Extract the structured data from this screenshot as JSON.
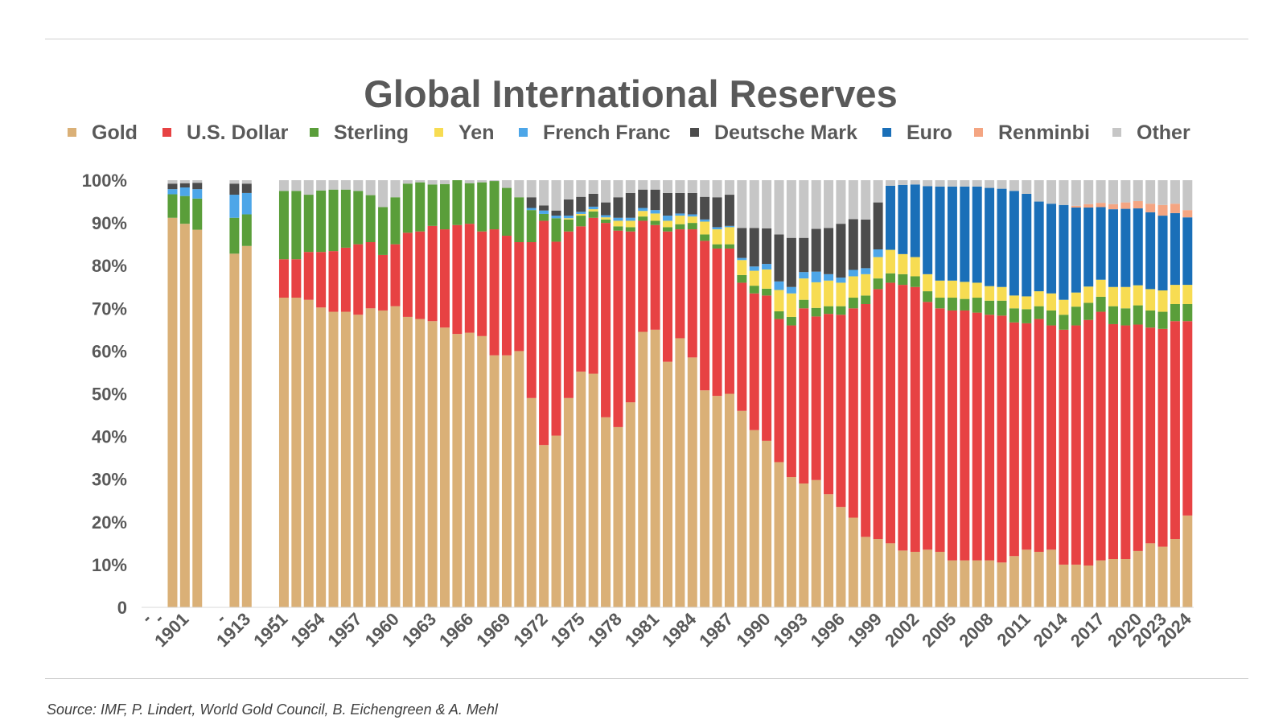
{
  "source": "Source: IMF, P. Lindert, World Gold Council, B. Eichengreen & A. Mehl",
  "chart_data": {
    "type": "bar",
    "stacked": true,
    "title": "Global International Reserves",
    "legend_position": "top",
    "ylim": [
      0,
      100
    ],
    "y_ticks": [
      "0",
      "10%",
      "20%",
      "30%",
      "40%",
      "50%",
      "60%",
      "70%",
      "80%",
      "90%",
      "100%"
    ],
    "grid": false,
    "series": [
      {
        "name": "Gold",
        "color": "#DAB077"
      },
      {
        "name": "U.S. Dollar",
        "color": "#E74243"
      },
      {
        "name": "Sterling",
        "color": "#5A9E3A"
      },
      {
        "name": "Yen",
        "color": "#F7DC52"
      },
      {
        "name": "French Franc",
        "color": "#4DA6E8"
      },
      {
        "name": "Deutsche Mark",
        "color": "#4C4C4C"
      },
      {
        "name": "Euro",
        "color": "#1A6FB8"
      },
      {
        "name": "Renminbi",
        "color": "#F4A582"
      },
      {
        "name": "Other",
        "color": "#C6C6C6"
      }
    ],
    "categories": [
      "",
      "",
      "1900",
      "1901",
      "1902",
      "",
      "",
      "1912",
      "1913",
      "",
      "",
      "1951",
      "1952",
      "1953",
      "1954",
      "1955",
      "1956",
      "1957",
      "1958",
      "1959",
      "1960",
      "1961",
      "1962",
      "1963",
      "1964",
      "1965",
      "1966",
      "1967",
      "1968",
      "1969",
      "1970",
      "1971",
      "1972",
      "1973",
      "1974",
      "1975",
      "1976",
      "1977",
      "1978",
      "1979",
      "1980",
      "1981",
      "1982",
      "1983",
      "1984",
      "1985",
      "1986",
      "1987",
      "1988",
      "1989",
      "1990",
      "1991",
      "1992",
      "1993",
      "1994",
      "1995",
      "1996",
      "1997",
      "1998",
      "1999",
      "2000",
      "2001",
      "2002",
      "2003",
      "2004",
      "2005",
      "2006",
      "2007",
      "2008",
      "2009",
      "2010",
      "2011",
      "2012",
      "2013",
      "2014",
      "2015",
      "2016",
      "2017",
      "2018",
      "2019",
      "2020",
      "2021",
      "2022",
      "2023",
      "2024"
    ],
    "x_tick_labels": [
      "-",
      "-",
      "1901",
      "-",
      "1913",
      "-",
      "1951",
      "1954",
      "1957",
      "1960",
      "1963",
      "1966",
      "1969",
      "1972",
      "1975",
      "1978",
      "1981",
      "1984",
      "1987",
      "1990",
      "1993",
      "1996",
      "1999",
      "2002",
      "2005",
      "2008",
      "2011",
      "2014",
      "2017",
      "2020",
      "2023",
      "2024"
    ],
    "values": {
      "1900": [
        91.2,
        0,
        5.5,
        0,
        1.2,
        1.3,
        0,
        0,
        0.8
      ],
      "1901": [
        89.8,
        0,
        6.5,
        0,
        2.0,
        1.0,
        0,
        0,
        0.7
      ],
      "1902": [
        88.4,
        0,
        7.3,
        0,
        2.2,
        1.5,
        0,
        0,
        0.6
      ],
      "1912": [
        82.8,
        0,
        8.4,
        0,
        5.4,
        2.6,
        0,
        0,
        0.8
      ],
      "1913": [
        84.6,
        0,
        7.4,
        0,
        5.0,
        2.2,
        0,
        0,
        0.8
      ],
      "1951": [
        72.5,
        9.0,
        16.0,
        0,
        0,
        0,
        0,
        0,
        2.5
      ],
      "1952": [
        72.5,
        9.0,
        16.0,
        0,
        0,
        0,
        0,
        0,
        2.5
      ],
      "1953": [
        72.0,
        11.2,
        13.4,
        0,
        0,
        0,
        0,
        0,
        3.4
      ],
      "1954": [
        70.2,
        13.0,
        14.4,
        0,
        0,
        0,
        0,
        0,
        2.4
      ],
      "1955": [
        69.2,
        14.2,
        14.4,
        0,
        0,
        0,
        0,
        0,
        2.2
      ],
      "1956": [
        69.2,
        15.0,
        13.6,
        0,
        0,
        0,
        0,
        0,
        2.2
      ],
      "1957": [
        68.5,
        16.5,
        12.5,
        0,
        0,
        0,
        0,
        0,
        2.5
      ],
      "1958": [
        70.0,
        15.5,
        11.0,
        0,
        0,
        0,
        0,
        0,
        3.5
      ],
      "1959": [
        69.5,
        13.0,
        11.2,
        0,
        0,
        0,
        0,
        0,
        6.3
      ],
      "1960": [
        70.5,
        14.5,
        11.0,
        0,
        0,
        0,
        0,
        0,
        4.0
      ],
      "1961": [
        68.0,
        19.7,
        11.5,
        0,
        0,
        0,
        0,
        0,
        0.8
      ],
      "1962": [
        67.5,
        20.5,
        11.5,
        0,
        0,
        0,
        0,
        0,
        0.5
      ],
      "1963": [
        67.0,
        22.3,
        9.7,
        0,
        0,
        0,
        0,
        0,
        1.0
      ],
      "1964": [
        65.5,
        23.0,
        10.6,
        0,
        0,
        0,
        0,
        0,
        0.9
      ],
      "1965": [
        64.0,
        25.5,
        10.5,
        0,
        0,
        0,
        0,
        0,
        0
      ],
      "1966": [
        64.3,
        25.5,
        9.5,
        0,
        0,
        0,
        0,
        0,
        0.7
      ],
      "1967": [
        63.5,
        24.5,
        11.5,
        0,
        0,
        0,
        0,
        0,
        0.5
      ],
      "1968": [
        59.0,
        29.5,
        11.3,
        0,
        0,
        0,
        0,
        0,
        0.2
      ],
      "1969": [
        59.0,
        28.0,
        11.2,
        0,
        0,
        0,
        0,
        0,
        1.8
      ],
      "1970": [
        60.0,
        25.5,
        10.5,
        0,
        0,
        0,
        0,
        0,
        4.0
      ],
      "1971": [
        49.0,
        36.5,
        7.5,
        0,
        0.5,
        2.5,
        0,
        0,
        4.0
      ],
      "1972": [
        38.0,
        52.5,
        1.6,
        0,
        0.8,
        1.2,
        0,
        0,
        5.9
      ],
      "1973": [
        40.2,
        45.4,
        5.5,
        0,
        0.6,
        1.2,
        0,
        0,
        7.1
      ],
      "1974": [
        49.0,
        39.0,
        2.8,
        0.3,
        0.6,
        3.8,
        0,
        0,
        4.5
      ],
      "1975": [
        55.2,
        34.0,
        2.5,
        0.4,
        0.5,
        3.5,
        0,
        0,
        3.9
      ],
      "1976": [
        54.7,
        36.5,
        1.5,
        0.5,
        0.6,
        3.0,
        0,
        0,
        3.2
      ],
      "1977": [
        44.5,
        45.5,
        0.8,
        0.5,
        0.5,
        3.0,
        0,
        0,
        5.2
      ],
      "1978": [
        42.2,
        46.0,
        1.0,
        1.3,
        0.7,
        4.8,
        0,
        0,
        4.0
      ],
      "1979": [
        48.0,
        40.0,
        1.0,
        1.5,
        0.7,
        5.8,
        0,
        0,
        3.0
      ],
      "1980": [
        64.5,
        26.0,
        1.0,
        1.3,
        0.7,
        4.3,
        0,
        0,
        2.2
      ],
      "1981": [
        65.0,
        24.5,
        1.0,
        1.7,
        0.8,
        4.8,
        0,
        0,
        2.2
      ],
      "1982": [
        57.5,
        30.5,
        1.0,
        1.5,
        1.2,
        5.3,
        0,
        0,
        3.0
      ],
      "1983": [
        63.0,
        25.5,
        1.2,
        2.0,
        0.5,
        4.8,
        0,
        0,
        3.0
      ],
      "1984": [
        58.5,
        30.0,
        1.5,
        1.5,
        0.5,
        5.0,
        0,
        0,
        3.0
      ],
      "1985": [
        50.8,
        35.0,
        1.5,
        3.0,
        0.5,
        5.3,
        0,
        0,
        3.9
      ],
      "1986": [
        49.5,
        34.5,
        1.0,
        3.5,
        0.5,
        7.0,
        0,
        0,
        4.0
      ],
      "1987": [
        50.0,
        34.0,
        1.0,
        4.0,
        0.3,
        7.3,
        0,
        0,
        3.4
      ],
      "1988": [
        46.0,
        30.0,
        1.8,
        3.5,
        0.5,
        7.0,
        0,
        0,
        11.2
      ],
      "1989": [
        41.5,
        32.0,
        1.8,
        3.5,
        1.0,
        9.0,
        0,
        0,
        11.2
      ],
      "1990": [
        39.0,
        34.0,
        1.6,
        4.5,
        1.3,
        8.3,
        0,
        0,
        11.3
      ],
      "1991": [
        34.0,
        33.5,
        1.8,
        5.0,
        2.0,
        11.0,
        0,
        0,
        12.7
      ],
      "1992": [
        30.5,
        35.5,
        2.0,
        5.5,
        1.5,
        11.5,
        0,
        0,
        13.5
      ],
      "1993": [
        29.0,
        41.0,
        2.0,
        5.0,
        1.5,
        8.0,
        0,
        0,
        13.5
      ],
      "1994": [
        29.8,
        38.3,
        2.0,
        6.0,
        2.5,
        10.0,
        0,
        0,
        11.4
      ],
      "1995": [
        26.5,
        42.2,
        1.8,
        6.0,
        1.5,
        10.8,
        0,
        0,
        11.2
      ],
      "1996": [
        23.5,
        45.0,
        2.0,
        5.5,
        1.2,
        12.6,
        0,
        0,
        10.2
      ],
      "1997": [
        21.0,
        49.0,
        2.5,
        5.0,
        1.5,
        11.9,
        0,
        0,
        9.1
      ],
      "1998": [
        16.5,
        54.5,
        2.0,
        5.0,
        1.4,
        11.4,
        0,
        0,
        9.2
      ],
      "1999": [
        16.0,
        58.5,
        2.5,
        5.0,
        1.8,
        11.0,
        0,
        0,
        5.2
      ],
      "2000": [
        15.0,
        61.0,
        2.2,
        5.5,
        0,
        0,
        15.0,
        0,
        1.3
      ],
      "2001": [
        13.3,
        62.2,
        2.5,
        4.7,
        0,
        0,
        16.2,
        0,
        1.1
      ],
      "2002": [
        13.0,
        62.0,
        2.5,
        4.5,
        0,
        0,
        17.0,
        0,
        1.0
      ],
      "2003": [
        13.5,
        58.0,
        2.5,
        4.0,
        0,
        0,
        20.6,
        0,
        1.4
      ],
      "2004": [
        13.0,
        57.0,
        2.5,
        4.0,
        0,
        0,
        22.0,
        0,
        1.5
      ],
      "2005": [
        11.0,
        58.5,
        3.0,
        4.0,
        0,
        0,
        22.0,
        0,
        1.5
      ],
      "2006": [
        11.0,
        58.5,
        2.7,
        4.0,
        0,
        0,
        22.3,
        0,
        1.5
      ],
      "2007": [
        11.0,
        58.0,
        3.5,
        3.5,
        0,
        0,
        22.5,
        0,
        1.5
      ],
      "2008": [
        11.0,
        57.5,
        3.3,
        3.4,
        0,
        0,
        23.0,
        0,
        1.8
      ],
      "2009": [
        10.5,
        57.8,
        3.5,
        3.2,
        0,
        0,
        23.0,
        0,
        2.0
      ],
      "2010": [
        12.0,
        54.7,
        3.3,
        3.0,
        0,
        0,
        24.5,
        0,
        2.5
      ],
      "2011": [
        13.5,
        53.0,
        3.3,
        3.0,
        0,
        0,
        24.0,
        0,
        3.2
      ],
      "2012": [
        13.0,
        54.5,
        3.0,
        3.5,
        0,
        0,
        21.0,
        0,
        5.0
      ],
      "2013": [
        13.5,
        52.5,
        3.5,
        4.0,
        0,
        0,
        21.0,
        0,
        5.5
      ],
      "2014": [
        10.0,
        55.0,
        3.5,
        3.5,
        0,
        0,
        22.2,
        0,
        5.8
      ],
      "2015": [
        10.0,
        56.0,
        4.4,
        3.3,
        0,
        0,
        19.9,
        0.4,
        6.0
      ],
      "2016": [
        9.8,
        57.5,
        4.0,
        3.8,
        0,
        0,
        18.5,
        0.8,
        5.6
      ],
      "2017": [
        11.0,
        58.2,
        3.5,
        4.0,
        0,
        0,
        17.0,
        1.0,
        5.3
      ],
      "2018": [
        11.3,
        55.0,
        4.2,
        4.5,
        0,
        0,
        18.2,
        1.2,
        5.6
      ],
      "2019": [
        11.3,
        54.7,
        4.0,
        5.0,
        0,
        0,
        18.3,
        1.5,
        5.2
      ],
      "2020": [
        13.2,
        53.0,
        4.5,
        4.7,
        0,
        0,
        18.0,
        1.7,
        4.9
      ],
      "2021": [
        15.0,
        50.5,
        4.0,
        5.0,
        0,
        0,
        18.0,
        2.0,
        5.5
      ],
      "2022": [
        14.2,
        51.0,
        4.0,
        5.0,
        0,
        0,
        17.5,
        2.5,
        5.8
      ],
      "2023": [
        16.0,
        51.0,
        4.0,
        4.5,
        0,
        0,
        16.8,
        2.2,
        5.5
      ],
      "2024": [
        17.5,
        48.8,
        4.0,
        4.5,
        0,
        0,
        16.5,
        1.8,
        6.9
      ],
      "2024b": [
        21.5,
        45.5,
        4.0,
        4.5,
        0,
        0,
        15.8,
        1.7,
        7.0
      ]
    }
  }
}
